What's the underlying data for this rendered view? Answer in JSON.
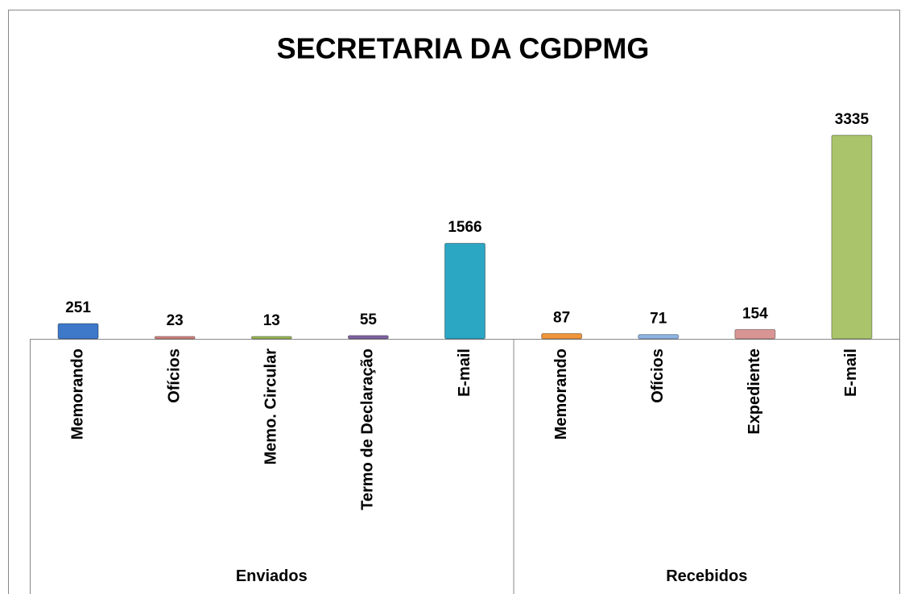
{
  "chart_data": {
    "type": "bar",
    "title": "SECRETARIA DA CGDPMG",
    "groups": [
      {
        "label": "Enviados",
        "categories": [
          "Memorando",
          "Ofícios",
          "Memo. Circular",
          "Termo de Declaração",
          "E-mail"
        ],
        "values": [
          251,
          23,
          13,
          55,
          1566
        ],
        "colors": [
          "#3d78c9",
          "#d98582",
          "#9bbb59",
          "#8064a2",
          "#2ba6c3"
        ]
      },
      {
        "label": "Recebidos",
        "categories": [
          "Memorando",
          "Ofícios",
          "Expediente",
          "E-mail"
        ],
        "values": [
          87,
          71,
          154,
          3335
        ],
        "colors": [
          "#f0953a",
          "#8eb4e3",
          "#d99594",
          "#a9c46a"
        ]
      }
    ]
  }
}
